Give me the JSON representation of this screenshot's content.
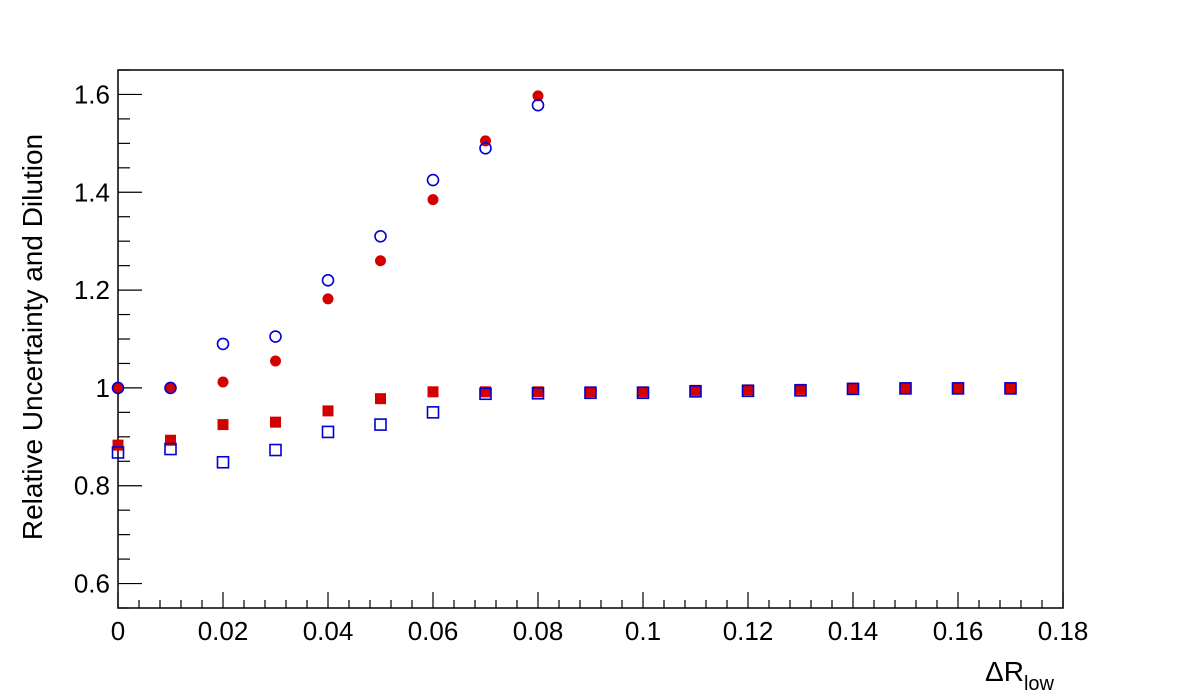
{
  "chart_data": {
    "type": "scatter",
    "title": "",
    "xlabel": "ΔR",
    "xlabel_subscript": "low",
    "ylabel": "Relative Uncertainty and Dilution",
    "xlim": [
      0,
      0.18
    ],
    "ylim": [
      0.55,
      1.65
    ],
    "x_ticks": [
      0,
      0.02,
      0.04,
      0.06,
      0.08,
      0.1,
      0.12,
      0.14,
      0.16,
      0.18
    ],
    "x_tick_labels": [
      "0",
      "0.02",
      "0.04",
      "0.06",
      "0.08",
      "0.1",
      "0.12",
      "0.14",
      "0.16",
      "0.18"
    ],
    "y_ticks": [
      0.6,
      0.8,
      1.0,
      1.2,
      1.4,
      1.6
    ],
    "y_tick_labels": [
      "0.6",
      "0.8",
      "1",
      "1.2",
      "1.4",
      "1.6"
    ],
    "grid": false,
    "legend": "none",
    "series": [
      {
        "marker": "filled-circle",
        "color": "#d40000",
        "x": [
          0,
          0.01,
          0.02,
          0.03,
          0.04,
          0.05,
          0.06,
          0.07,
          0.08
        ],
        "y": [
          1.0,
          1.0,
          1.012,
          1.055,
          1.182,
          1.26,
          1.385,
          1.505,
          1.597
        ]
      },
      {
        "marker": "open-circle",
        "color": "#0000d4",
        "x": [
          0,
          0.01,
          0.02,
          0.03,
          0.04,
          0.05,
          0.06,
          0.07,
          0.08
        ],
        "y": [
          1.0,
          1.0,
          1.09,
          1.105,
          1.22,
          1.31,
          1.425,
          1.49,
          1.578
        ]
      },
      {
        "marker": "filled-square",
        "color": "#d40000",
        "x": [
          0,
          0.01,
          0.02,
          0.03,
          0.04,
          0.05,
          0.06,
          0.07,
          0.08,
          0.09,
          0.1,
          0.11,
          0.12,
          0.13,
          0.14,
          0.15,
          0.16,
          0.17
        ],
        "y": [
          0.883,
          0.893,
          0.925,
          0.93,
          0.953,
          0.978,
          0.992,
          0.992,
          0.992,
          0.992,
          0.992,
          0.995,
          0.996,
          0.997,
          0.999,
          1.0,
          1.0,
          1.0
        ]
      },
      {
        "marker": "open-square",
        "color": "#0000d4",
        "x": [
          0,
          0.01,
          0.02,
          0.03,
          0.04,
          0.05,
          0.06,
          0.07,
          0.08,
          0.09,
          0.1,
          0.11,
          0.12,
          0.13,
          0.14,
          0.15,
          0.16,
          0.17
        ],
        "y": [
          0.868,
          0.875,
          0.848,
          0.873,
          0.91,
          0.925,
          0.95,
          0.988,
          0.989,
          0.99,
          0.99,
          0.993,
          0.994,
          0.995,
          0.998,
          0.999,
          0.999,
          0.999
        ]
      }
    ]
  }
}
